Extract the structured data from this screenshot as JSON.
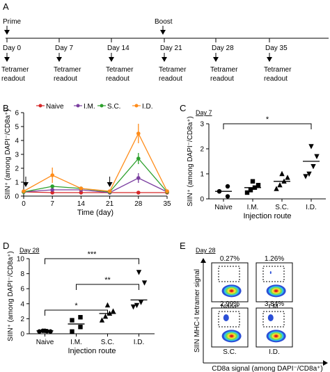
{
  "panel_letters": {
    "a": "A",
    "b": "B",
    "c": "C",
    "d": "D",
    "e": "E"
  },
  "timeline": {
    "prime_label": "Prime",
    "boost_label": "Boost",
    "days": [
      "Day 0",
      "Day 7",
      "Day 14",
      "Day 21",
      "Day 28",
      "Day 35"
    ],
    "readout_line1": "Tetramer",
    "readout_line2": "readout"
  },
  "chart_data": [
    {
      "panel": "B",
      "type": "line",
      "x": [
        0,
        7,
        14,
        21,
        28,
        35
      ],
      "xlabel": "Time (day)",
      "ylabel": "SIIN⁺ (among DAPI⁻/CD8a⁺)",
      "xlim": [
        0,
        35
      ],
      "ylim": [
        0,
        6
      ],
      "xticks": [
        "0",
        "7",
        "14",
        "21",
        "28",
        "35"
      ],
      "yticks": [
        "0",
        "1",
        "2",
        "3",
        "4",
        "5",
        "6"
      ],
      "legend_position": "top",
      "arrows_at_x": [
        0,
        21
      ],
      "series": [
        {
          "name": "Naive",
          "color": "#d62728",
          "values": [
            0.3,
            0.25,
            0.25,
            0.25,
            0.25,
            0.25
          ],
          "errors": [
            0.05,
            0.05,
            0.05,
            0.05,
            0.05,
            0.05
          ]
        },
        {
          "name": "I.M.",
          "color": "#7b3fa0",
          "values": [
            0.3,
            0.45,
            0.45,
            0.25,
            1.3,
            0.3
          ],
          "errors": [
            0.05,
            0.1,
            0.1,
            0.05,
            0.35,
            0.05
          ]
        },
        {
          "name": "S.C.",
          "color": "#2ca02c",
          "values": [
            0.3,
            0.7,
            0.55,
            0.3,
            2.7,
            0.3
          ],
          "errors": [
            0.05,
            0.1,
            0.1,
            0.05,
            0.4,
            0.05
          ]
        },
        {
          "name": "I.D.",
          "color": "#ff8c1a",
          "values": [
            0.35,
            1.5,
            0.55,
            0.35,
            4.5,
            0.35
          ],
          "errors": [
            0.1,
            0.55,
            0.1,
            0.05,
            0.7,
            0.05
          ]
        }
      ]
    },
    {
      "panel": "C",
      "type": "scatter",
      "subtitle": "Day 7",
      "categories": [
        "Naive",
        "I.M.",
        "S.C.",
        "I.D."
      ],
      "xlabel": "Injection route",
      "ylabel": "SIIN⁺ (among DAPI⁻/CD8a⁺)",
      "ylim": [
        0,
        3
      ],
      "yticks": [
        "0",
        "1",
        "2",
        "3"
      ],
      "markers": [
        "circle",
        "square",
        "triangle-up",
        "triangle-down"
      ],
      "points": [
        [
          0.3,
          0.5,
          0.3,
          0.1
        ],
        [
          0.25,
          0.35,
          0.45,
          0.55,
          0.7
        ],
        [
          0.4,
          0.55,
          0.7,
          0.85,
          1.0
        ],
        [
          0.9,
          1.0,
          1.3,
          1.7,
          2.1
        ]
      ],
      "medians": [
        0.3,
        0.45,
        0.7,
        1.5
      ],
      "significance": [
        {
          "from": "Naive",
          "to": "I.D.",
          "label": "*"
        }
      ]
    },
    {
      "panel": "D",
      "type": "scatter",
      "subtitle": "Day 28",
      "categories": [
        "Naive",
        "I.M.",
        "S.C.",
        "I.D."
      ],
      "xlabel": "Injection route",
      "ylabel": "SIIN⁺ (among DAPI⁻/CD8a⁺)",
      "ylim": [
        0,
        10
      ],
      "yticks": [
        "0",
        "2",
        "4",
        "6",
        "8",
        "10"
      ],
      "markers": [
        "circle",
        "square",
        "triangle-up",
        "triangle-down"
      ],
      "points": [
        [
          0.3,
          0.4,
          0.35,
          0.3,
          0.4
        ],
        [
          0.3,
          0.9,
          1.8,
          2.2
        ],
        [
          1.8,
          2.3,
          2.7,
          3.0,
          3.8
        ],
        [
          3.6,
          3.8,
          4.2,
          6.8,
          8.2
        ]
      ],
      "medians": [
        0.4,
        1.3,
        2.7,
        4.5
      ],
      "significance": [
        {
          "from": "Naive",
          "to": "S.C.",
          "label": "*"
        },
        {
          "from": "I.M.",
          "to": "I.D.",
          "label": "**"
        },
        {
          "from": "Naive",
          "to": "I.D.",
          "label": "***"
        }
      ]
    }
  ],
  "flow": {
    "subtitle": "Day 28",
    "ylabel": "SIIN MHC-I tetramer signal",
    "xlabel": "CD8a signal (among DAPI⁻/CD8a⁺)",
    "plots": [
      {
        "label": "Naive",
        "percent": "0.27%"
      },
      {
        "label": "I.M.",
        "percent": "1.26%"
      },
      {
        "label": "S.C.",
        "percent": "2.99%"
      },
      {
        "label": "I.D.",
        "percent": "3.84%"
      }
    ]
  }
}
